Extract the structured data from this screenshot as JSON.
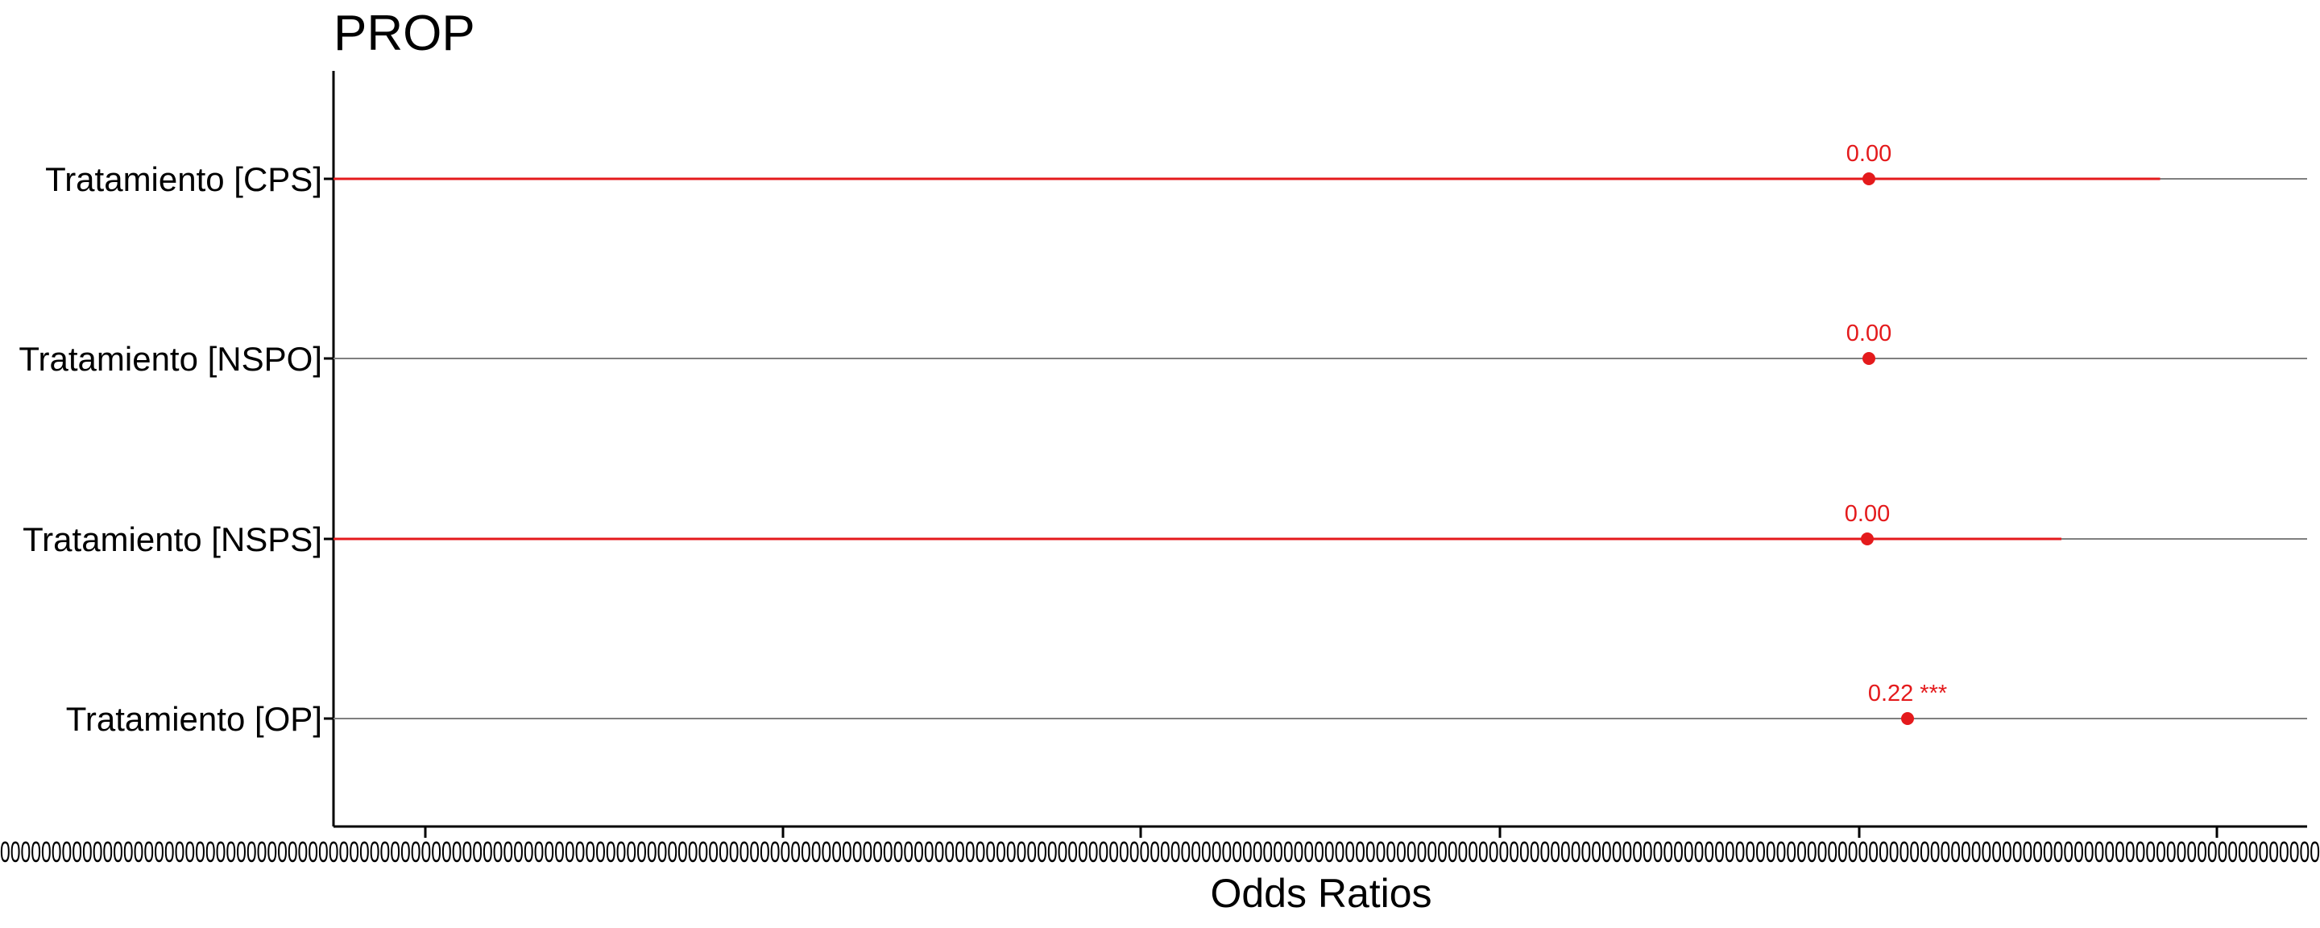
{
  "chart_data": {
    "type": "forest",
    "title": "PROP",
    "xlabel": "Odds Ratios",
    "ylabel": "",
    "x_tick_labels_overlapping": true,
    "x_tick_text": "0000000000000000000000000000000000000000000000000000000000000000000000000000000000000000000000000000000000000000000000000000000000000000000000000000000000000000000000000000000000000000000000000000000000000000000000000000000000",
    "grid": false,
    "point_color": "#e41a1c",
    "whisker_color": "#e41a1c",
    "line_color": "#7f7f7f",
    "categories": [
      "Tratamiento [CPS]",
      "Tratamiento [NSPO]",
      "Tratamiento [NSPS]",
      "Tratamiento [OP]"
    ],
    "estimates": [
      0.0,
      0.0,
      0.0,
      0.22
    ],
    "labels": [
      "0.00",
      "0.00",
      "0.00",
      "0.22 ***"
    ],
    "ci_upper_fraction": [
      0.95,
      0.0,
      0.9,
      0.0
    ]
  }
}
